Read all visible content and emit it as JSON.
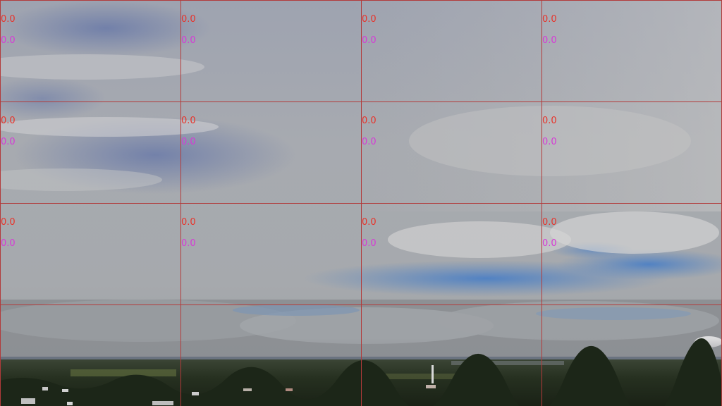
{
  "colors": {
    "grid_line": "#b23a3a",
    "value_primary": "#e8332a",
    "value_secondary": "#d63ad6"
  },
  "cells": [
    {
      "a": "0.0",
      "b": "0.0"
    },
    {
      "a": "0.0",
      "b": "0.0"
    },
    {
      "a": "0.0",
      "b": "0.0"
    },
    {
      "a": "0.0",
      "b": "0.0"
    },
    {
      "a": "0.0",
      "b": "0.0"
    },
    {
      "a": "0.0",
      "b": "0.0"
    },
    {
      "a": "0.0",
      "b": "0.0"
    },
    {
      "a": "0.0",
      "b": "0.0"
    },
    {
      "a": "0.0",
      "b": "0.0"
    },
    {
      "a": "0.0",
      "b": "0.0"
    },
    {
      "a": "0.0",
      "b": "0.0"
    },
    {
      "a": "0.0",
      "b": "0.0"
    },
    {
      "a": "",
      "b": ""
    },
    {
      "a": "",
      "b": ""
    },
    {
      "a": "",
      "b": ""
    },
    {
      "a": "",
      "b": ""
    }
  ]
}
